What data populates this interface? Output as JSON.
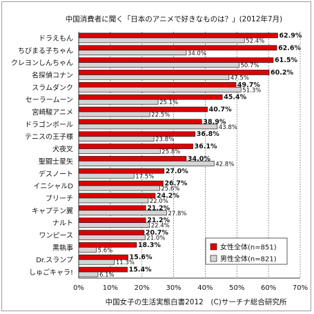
{
  "chart_data": {
    "type": "bar",
    "orientation": "horizontal",
    "title": "中国消費者に聞く「日本のアニメで好きなものは？」(2012年7月)",
    "footer": "中国女子の生活実態白書2012　(C)サーチナ総合研究所",
    "categories": [
      "ドラえもん",
      "ちびまる子ちゃん",
      "クレヨンしんちゃん",
      "名探偵コナン",
      "スラムダンク",
      "セーラームーン",
      "宮崎駿アニメ",
      "ドラゴンボール",
      "テニスの王子様",
      "犬夜叉",
      "聖闘士星矢",
      "デスノート",
      "イニシャルD",
      "ブリーチ",
      "キャプテン翼",
      "ナルト",
      "ワンピース",
      "黒執事",
      "Dr.スランプ",
      "しゅごキャラ!"
    ],
    "series": [
      {
        "name": "女性全体(n=851)",
        "color": "#dd0000",
        "values": [
          62.9,
          62.6,
          61.5,
          60.2,
          49.7,
          45.4,
          40.7,
          38.9,
          36.8,
          36.1,
          34.0,
          27.0,
          26.7,
          24.2,
          21.2,
          21.2,
          20.7,
          18.3,
          15.6,
          15.4
        ],
        "labels": [
          "62.9%",
          "62.6%",
          "61.5%",
          "60.2%",
          "49.7%",
          "45.4%",
          "40.7%",
          "38.9%",
          "36.8%",
          "36.1%",
          "34.0%",
          "27.0%",
          "26.7%",
          "24.2%",
          "21.2%",
          "21.2%",
          "20.7%",
          "18.3%",
          "15.6%",
          "15.4%"
        ]
      },
      {
        "name": "男性全体(n=821)",
        "color": "#d4d4d4",
        "values": [
          52.4,
          34.0,
          50.7,
          47.5,
          51.3,
          25.1,
          22.5,
          43.8,
          23.8,
          25.8,
          42.8,
          17.5,
          25.6,
          22.0,
          27.8,
          22.4,
          21.0,
          5.6,
          11.3,
          6.1
        ],
        "labels": [
          "52.4%",
          "34.0%",
          "50.7%",
          "47.5%",
          "51.3%",
          "25.1%",
          "22.5%",
          "43.8%",
          "23.8%",
          "25.8%",
          "42.8%",
          "17.5%",
          "25.6%",
          "22.0%",
          "27.8%",
          "22.4%",
          "21.0%",
          "5.6%",
          "11.3%",
          "6.1%"
        ]
      }
    ],
    "xlim": [
      0,
      70
    ],
    "xticks": [
      "0%",
      "10%",
      "20%",
      "30%",
      "40%",
      "50%",
      "60%",
      "70%"
    ],
    "legend_position": "bottom-right",
    "grid": true
  }
}
